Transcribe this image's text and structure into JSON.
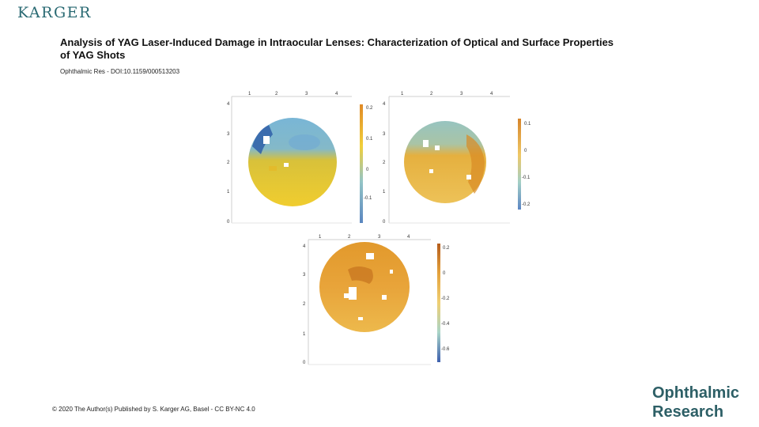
{
  "publisher": {
    "logo_text": "KARGER"
  },
  "article": {
    "title_line1": "Analysis of YAG Laser-Induced Damage in Intraocular Lenses: Characterization of Optical and Surface Properties",
    "title_line2": "of YAG Shots",
    "citation": "Ophthalmic Res - DOI:10.1159/000513203"
  },
  "footer": {
    "copyright": "© 2020 The Author(s) Published by S. Karger AG, Basel - CC BY-NC 4.0"
  },
  "journal": {
    "line1": "Ophthalmic",
    "line2": "Research"
  },
  "figure": {
    "panels": [
      {
        "id": "top-left",
        "x_ticks": [
          "1",
          "2",
          "3",
          "4"
        ],
        "y_ticks": [
          "4",
          "3",
          "2",
          "1",
          "0"
        ],
        "colorbar_ticks": [
          "0.2",
          "0.1",
          "0",
          "-0.1"
        ],
        "colors": {
          "top": "#6aaed6",
          "bottom": "#e9c22a",
          "accent": "#3a6fb8",
          "lowerband": "#f1cb2f"
        }
      },
      {
        "id": "top-right",
        "x_ticks": [
          "1",
          "2",
          "3",
          "4"
        ],
        "y_ticks": [
          "4",
          "3",
          "2",
          "1",
          "0"
        ],
        "colorbar_ticks": [
          "0.1",
          "0",
          "-0.1",
          "-0.2"
        ],
        "colors": {
          "top": "#8fc0c6",
          "bottom": "#e7b240",
          "accent": "#d98a24",
          "lowerband": "#ebc052"
        }
      },
      {
        "id": "bottom",
        "x_ticks": [
          "1",
          "2",
          "3",
          "4"
        ],
        "y_ticks": [
          "4",
          "3",
          "2",
          "1",
          "0"
        ],
        "colorbar_ticks": [
          "0.2",
          "0",
          "-0.2",
          "-0.4",
          "-0.6"
        ],
        "colors": {
          "top": "#e39a2c",
          "bottom": "#e7a73a",
          "accent": "#c9731d",
          "lowerband": "#eebc54"
        }
      }
    ]
  }
}
